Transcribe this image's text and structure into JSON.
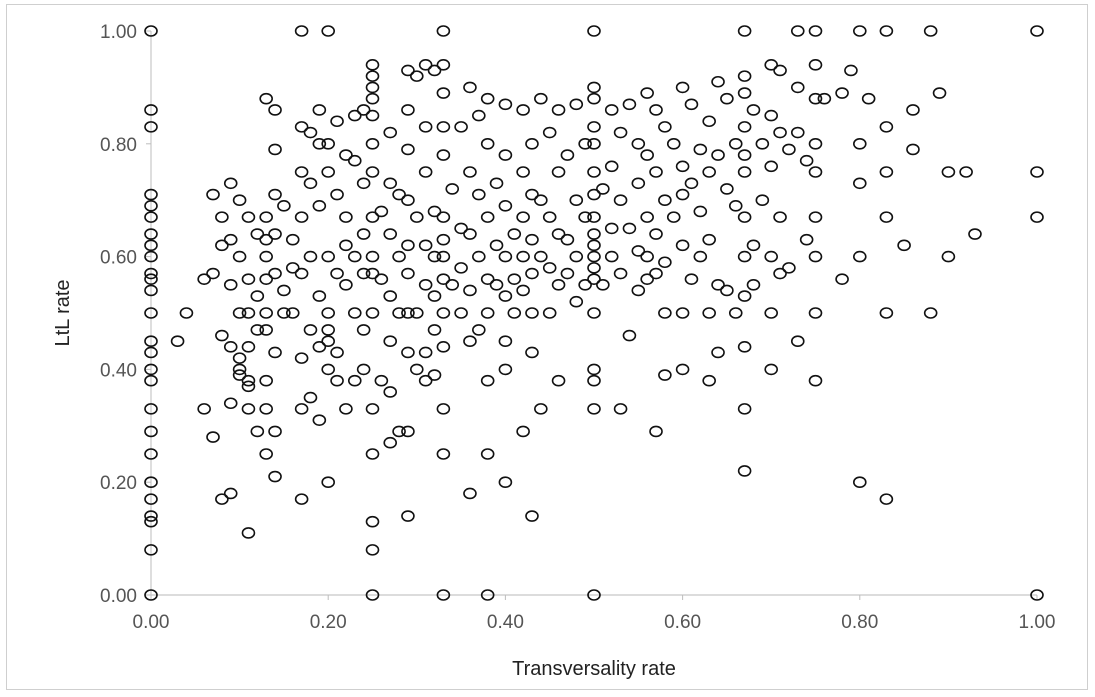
{
  "chart_data": {
    "type": "scatter",
    "title": "",
    "xlabel": "Transversality rate",
    "ylabel": "LtL rate",
    "xlim": [
      0,
      1
    ],
    "ylim": [
      0,
      1
    ],
    "grid": false,
    "marker": "open-circle",
    "marker_color": "#111111",
    "x_ticks": [
      "0.00",
      "0.20",
      "0.40",
      "0.60",
      "0.80",
      "1.00"
    ],
    "y_ticks": [
      "0.00",
      "0.20",
      "0.40",
      "0.60",
      "0.80",
      "1.00"
    ],
    "points": [
      [
        0,
        1
      ],
      [
        0,
        0.86
      ],
      [
        0,
        0.83
      ],
      [
        0,
        0.71
      ],
      [
        0,
        0.69
      ],
      [
        0,
        0.67
      ],
      [
        0,
        0.64
      ],
      [
        0,
        0.62
      ],
      [
        0,
        0.6
      ],
      [
        0,
        0.57
      ],
      [
        0,
        0.56
      ],
      [
        0,
        0.54
      ],
      [
        0,
        0.5
      ],
      [
        0,
        0.45
      ],
      [
        0,
        0.43
      ],
      [
        0,
        0.4
      ],
      [
        0,
        0.38
      ],
      [
        0,
        0.33
      ],
      [
        0,
        0.29
      ],
      [
        0,
        0.25
      ],
      [
        0,
        0.2
      ],
      [
        0,
        0.17
      ],
      [
        0,
        0.14
      ],
      [
        0,
        0.13
      ],
      [
        0,
        0.08
      ],
      [
        0,
        0
      ],
      [
        0.04,
        0.5
      ],
      [
        0.03,
        0.45
      ],
      [
        0.06,
        0.33
      ],
      [
        0.07,
        0.28
      ],
      [
        0.06,
        0.56
      ],
      [
        0.07,
        0.57
      ],
      [
        0.07,
        0.71
      ],
      [
        0.08,
        0.67
      ],
      [
        0.08,
        0.62
      ],
      [
        0.08,
        0.46
      ],
      [
        0.08,
        0.17
      ],
      [
        0.09,
        0.73
      ],
      [
        0.09,
        0.63
      ],
      [
        0.09,
        0.55
      ],
      [
        0.09,
        0.44
      ],
      [
        0.09,
        0.34
      ],
      [
        0.09,
        0.18
      ],
      [
        0.1,
        0.7
      ],
      [
        0.1,
        0.6
      ],
      [
        0.1,
        0.5
      ],
      [
        0.1,
        0.42
      ],
      [
        0.1,
        0.39
      ],
      [
        0.1,
        0.4
      ],
      [
        0.11,
        0.38
      ],
      [
        0.11,
        0.37
      ],
      [
        0.11,
        0.33
      ],
      [
        0.11,
        0.11
      ],
      [
        0.11,
        0.67
      ],
      [
        0.11,
        0.56
      ],
      [
        0.11,
        0.5
      ],
      [
        0.11,
        0.44
      ],
      [
        0.12,
        0.64
      ],
      [
        0.12,
        0.53
      ],
      [
        0.12,
        0.47
      ],
      [
        0.12,
        0.29
      ],
      [
        0.13,
        0.88
      ],
      [
        0.13,
        0.67
      ],
      [
        0.13,
        0.63
      ],
      [
        0.13,
        0.6
      ],
      [
        0.13,
        0.56
      ],
      [
        0.13,
        0.5
      ],
      [
        0.13,
        0.47
      ],
      [
        0.13,
        0.38
      ],
      [
        0.13,
        0.33
      ],
      [
        0.13,
        0.25
      ],
      [
        0.14,
        0.86
      ],
      [
        0.14,
        0.79
      ],
      [
        0.14,
        0.71
      ],
      [
        0.14,
        0.64
      ],
      [
        0.14,
        0.57
      ],
      [
        0.14,
        0.43
      ],
      [
        0.14,
        0.29
      ],
      [
        0.14,
        0.21
      ],
      [
        0.15,
        0.69
      ],
      [
        0.15,
        0.54
      ],
      [
        0.15,
        0.5
      ],
      [
        0.16,
        0.63
      ],
      [
        0.16,
        0.58
      ],
      [
        0.16,
        0.5
      ],
      [
        0.17,
        0.83
      ],
      [
        0.17,
        0.75
      ],
      [
        0.17,
        0.67
      ],
      [
        0.17,
        0.57
      ],
      [
        0.17,
        0.42
      ],
      [
        0.17,
        0.33
      ],
      [
        0.17,
        0.17
      ],
      [
        0.17,
        1
      ],
      [
        0.18,
        0.82
      ],
      [
        0.18,
        0.73
      ],
      [
        0.18,
        0.6
      ],
      [
        0.18,
        0.47
      ],
      [
        0.18,
        0.35
      ],
      [
        0.19,
        0.86
      ],
      [
        0.19,
        0.8
      ],
      [
        0.19,
        0.69
      ],
      [
        0.19,
        0.53
      ],
      [
        0.19,
        0.44
      ],
      [
        0.19,
        0.31
      ],
      [
        0.2,
        1
      ],
      [
        0.2,
        0.8
      ],
      [
        0.2,
        0.75
      ],
      [
        0.2,
        0.6
      ],
      [
        0.2,
        0.5
      ],
      [
        0.2,
        0.47
      ],
      [
        0.2,
        0.45
      ],
      [
        0.2,
        0.4
      ],
      [
        0.2,
        0.2
      ],
      [
        0.21,
        0.71
      ],
      [
        0.21,
        0.57
      ],
      [
        0.21,
        0.43
      ],
      [
        0.21,
        0.38
      ],
      [
        0.21,
        0.84
      ],
      [
        0.22,
        0.78
      ],
      [
        0.22,
        0.67
      ],
      [
        0.22,
        0.62
      ],
      [
        0.22,
        0.55
      ],
      [
        0.22,
        0.33
      ],
      [
        0.23,
        0.85
      ],
      [
        0.23,
        0.77
      ],
      [
        0.23,
        0.6
      ],
      [
        0.23,
        0.5
      ],
      [
        0.23,
        0.38
      ],
      [
        0.24,
        0.86
      ],
      [
        0.24,
        0.73
      ],
      [
        0.24,
        0.64
      ],
      [
        0.24,
        0.57
      ],
      [
        0.24,
        0.47
      ],
      [
        0.24,
        0.4
      ],
      [
        0.25,
        0.94
      ],
      [
        0.25,
        0.92
      ],
      [
        0.25,
        0.9
      ],
      [
        0.25,
        0.88
      ],
      [
        0.25,
        0.85
      ],
      [
        0.25,
        0.8
      ],
      [
        0.25,
        0.75
      ],
      [
        0.25,
        0.67
      ],
      [
        0.25,
        0.6
      ],
      [
        0.25,
        0.57
      ],
      [
        0.25,
        0.5
      ],
      [
        0.25,
        0.33
      ],
      [
        0.25,
        0.25
      ],
      [
        0.25,
        0.13
      ],
      [
        0.25,
        0.08
      ],
      [
        0.25,
        0
      ],
      [
        0.26,
        0.68
      ],
      [
        0.26,
        0.56
      ],
      [
        0.26,
        0.38
      ],
      [
        0.27,
        0.82
      ],
      [
        0.27,
        0.73
      ],
      [
        0.27,
        0.64
      ],
      [
        0.27,
        0.53
      ],
      [
        0.27,
        0.45
      ],
      [
        0.27,
        0.36
      ],
      [
        0.27,
        0.27
      ],
      [
        0.28,
        0.71
      ],
      [
        0.28,
        0.6
      ],
      [
        0.28,
        0.5
      ],
      [
        0.28,
        0.29
      ],
      [
        0.29,
        0.93
      ],
      [
        0.29,
        0.86
      ],
      [
        0.29,
        0.79
      ],
      [
        0.29,
        0.7
      ],
      [
        0.29,
        0.62
      ],
      [
        0.29,
        0.57
      ],
      [
        0.29,
        0.5
      ],
      [
        0.29,
        0.43
      ],
      [
        0.29,
        0.29
      ],
      [
        0.29,
        0.14
      ],
      [
        0.3,
        0.92
      ],
      [
        0.3,
        0.67
      ],
      [
        0.3,
        0.5
      ],
      [
        0.3,
        0.4
      ],
      [
        0.31,
        0.94
      ],
      [
        0.31,
        0.83
      ],
      [
        0.31,
        0.75
      ],
      [
        0.31,
        0.62
      ],
      [
        0.31,
        0.55
      ],
      [
        0.31,
        0.43
      ],
      [
        0.31,
        0.38
      ],
      [
        0.32,
        0.93
      ],
      [
        0.32,
        0.68
      ],
      [
        0.32,
        0.6
      ],
      [
        0.32,
        0.53
      ],
      [
        0.32,
        0.47
      ],
      [
        0.32,
        0.39
      ],
      [
        0.33,
        1
      ],
      [
        0.33,
        0.94
      ],
      [
        0.33,
        0.89
      ],
      [
        0.33,
        0.83
      ],
      [
        0.33,
        0.78
      ],
      [
        0.33,
        0.67
      ],
      [
        0.33,
        0.63
      ],
      [
        0.33,
        0.6
      ],
      [
        0.33,
        0.56
      ],
      [
        0.33,
        0.5
      ],
      [
        0.33,
        0.44
      ],
      [
        0.33,
        0.33
      ],
      [
        0.33,
        0.25
      ],
      [
        0.33,
        0
      ],
      [
        0.34,
        0.72
      ],
      [
        0.34,
        0.55
      ],
      [
        0.35,
        0.83
      ],
      [
        0.35,
        0.65
      ],
      [
        0.35,
        0.58
      ],
      [
        0.35,
        0.5
      ],
      [
        0.36,
        0.9
      ],
      [
        0.36,
        0.75
      ],
      [
        0.36,
        0.64
      ],
      [
        0.36,
        0.54
      ],
      [
        0.36,
        0.45
      ],
      [
        0.36,
        0.18
      ],
      [
        0.37,
        0.85
      ],
      [
        0.37,
        0.71
      ],
      [
        0.37,
        0.6
      ],
      [
        0.37,
        0.47
      ],
      [
        0.38,
        0.88
      ],
      [
        0.38,
        0.8
      ],
      [
        0.38,
        0.67
      ],
      [
        0.38,
        0.56
      ],
      [
        0.38,
        0.5
      ],
      [
        0.38,
        0.38
      ],
      [
        0.38,
        0.25
      ],
      [
        0.38,
        0
      ],
      [
        0.39,
        0.73
      ],
      [
        0.39,
        0.62
      ],
      [
        0.39,
        0.55
      ],
      [
        0.4,
        0.87
      ],
      [
        0.4,
        0.78
      ],
      [
        0.4,
        0.69
      ],
      [
        0.4,
        0.6
      ],
      [
        0.4,
        0.53
      ],
      [
        0.4,
        0.45
      ],
      [
        0.4,
        0.4
      ],
      [
        0.4,
        0.2
      ],
      [
        0.41,
        0.64
      ],
      [
        0.41,
        0.56
      ],
      [
        0.41,
        0.5
      ],
      [
        0.42,
        0.86
      ],
      [
        0.42,
        0.75
      ],
      [
        0.42,
        0.67
      ],
      [
        0.42,
        0.6
      ],
      [
        0.42,
        0.54
      ],
      [
        0.42,
        0.29
      ],
      [
        0.43,
        0.8
      ],
      [
        0.43,
        0.71
      ],
      [
        0.43,
        0.63
      ],
      [
        0.43,
        0.57
      ],
      [
        0.43,
        0.5
      ],
      [
        0.43,
        0.43
      ],
      [
        0.43,
        0.14
      ],
      [
        0.44,
        0.88
      ],
      [
        0.44,
        0.7
      ],
      [
        0.44,
        0.6
      ],
      [
        0.44,
        0.33
      ],
      [
        0.45,
        0.82
      ],
      [
        0.45,
        0.67
      ],
      [
        0.45,
        0.58
      ],
      [
        0.45,
        0.5
      ],
      [
        0.46,
        0.86
      ],
      [
        0.46,
        0.75
      ],
      [
        0.46,
        0.64
      ],
      [
        0.46,
        0.55
      ],
      [
        0.46,
        0.38
      ],
      [
        0.47,
        0.78
      ],
      [
        0.47,
        0.63
      ],
      [
        0.47,
        0.57
      ],
      [
        0.48,
        0.87
      ],
      [
        0.48,
        0.7
      ],
      [
        0.48,
        0.6
      ],
      [
        0.48,
        0.52
      ],
      [
        0.49,
        0.8
      ],
      [
        0.49,
        0.67
      ],
      [
        0.49,
        0.55
      ],
      [
        0.5,
        1
      ],
      [
        0.5,
        0.9
      ],
      [
        0.5,
        0.88
      ],
      [
        0.5,
        0.83
      ],
      [
        0.5,
        0.8
      ],
      [
        0.5,
        0.75
      ],
      [
        0.5,
        0.71
      ],
      [
        0.5,
        0.67
      ],
      [
        0.5,
        0.64
      ],
      [
        0.5,
        0.62
      ],
      [
        0.5,
        0.6
      ],
      [
        0.5,
        0.58
      ],
      [
        0.5,
        0.56
      ],
      [
        0.5,
        0.5
      ],
      [
        0.5,
        0.4
      ],
      [
        0.5,
        0.38
      ],
      [
        0.5,
        0.33
      ],
      [
        0.5,
        0
      ],
      [
        0.51,
        0.72
      ],
      [
        0.51,
        0.55
      ],
      [
        0.52,
        0.86
      ],
      [
        0.52,
        0.76
      ],
      [
        0.52,
        0.65
      ],
      [
        0.52,
        0.6
      ],
      [
        0.53,
        0.82
      ],
      [
        0.53,
        0.7
      ],
      [
        0.53,
        0.57
      ],
      [
        0.53,
        0.33
      ],
      [
        0.54,
        0.87
      ],
      [
        0.54,
        0.65
      ],
      [
        0.54,
        0.46
      ],
      [
        0.55,
        0.8
      ],
      [
        0.55,
        0.73
      ],
      [
        0.55,
        0.61
      ],
      [
        0.55,
        0.54
      ],
      [
        0.56,
        0.89
      ],
      [
        0.56,
        0.78
      ],
      [
        0.56,
        0.67
      ],
      [
        0.56,
        0.6
      ],
      [
        0.56,
        0.56
      ],
      [
        0.57,
        0.86
      ],
      [
        0.57,
        0.75
      ],
      [
        0.57,
        0.64
      ],
      [
        0.57,
        0.57
      ],
      [
        0.57,
        0.29
      ],
      [
        0.58,
        0.83
      ],
      [
        0.58,
        0.7
      ],
      [
        0.58,
        0.59
      ],
      [
        0.58,
        0.5
      ],
      [
        0.58,
        0.39
      ],
      [
        0.59,
        0.8
      ],
      [
        0.59,
        0.67
      ],
      [
        0.6,
        0.9
      ],
      [
        0.6,
        0.76
      ],
      [
        0.6,
        0.71
      ],
      [
        0.6,
        0.62
      ],
      [
        0.6,
        0.5
      ],
      [
        0.6,
        0.4
      ],
      [
        0.61,
        0.87
      ],
      [
        0.61,
        0.73
      ],
      [
        0.61,
        0.56
      ],
      [
        0.62,
        0.79
      ],
      [
        0.62,
        0.68
      ],
      [
        0.62,
        0.6
      ],
      [
        0.63,
        0.84
      ],
      [
        0.63,
        0.75
      ],
      [
        0.63,
        0.63
      ],
      [
        0.63,
        0.5
      ],
      [
        0.63,
        0.38
      ],
      [
        0.64,
        0.91
      ],
      [
        0.64,
        0.78
      ],
      [
        0.64,
        0.55
      ],
      [
        0.64,
        0.43
      ],
      [
        0.65,
        0.88
      ],
      [
        0.65,
        0.72
      ],
      [
        0.65,
        0.54
      ],
      [
        0.66,
        0.8
      ],
      [
        0.66,
        0.69
      ],
      [
        0.66,
        0.5
      ],
      [
        0.67,
        1
      ],
      [
        0.67,
        0.92
      ],
      [
        0.67,
        0.89
      ],
      [
        0.67,
        0.83
      ],
      [
        0.67,
        0.78
      ],
      [
        0.67,
        0.75
      ],
      [
        0.67,
        0.67
      ],
      [
        0.67,
        0.6
      ],
      [
        0.67,
        0.53
      ],
      [
        0.67,
        0.44
      ],
      [
        0.67,
        0.33
      ],
      [
        0.67,
        0.22
      ],
      [
        0.68,
        0.86
      ],
      [
        0.68,
        0.62
      ],
      [
        0.68,
        0.55
      ],
      [
        0.69,
        0.8
      ],
      [
        0.69,
        0.7
      ],
      [
        0.7,
        0.94
      ],
      [
        0.7,
        0.85
      ],
      [
        0.7,
        0.76
      ],
      [
        0.7,
        0.6
      ],
      [
        0.7,
        0.5
      ],
      [
        0.7,
        0.4
      ],
      [
        0.71,
        0.93
      ],
      [
        0.71,
        0.82
      ],
      [
        0.71,
        0.67
      ],
      [
        0.71,
        0.57
      ],
      [
        0.72,
        0.79
      ],
      [
        0.72,
        0.58
      ],
      [
        0.73,
        1
      ],
      [
        0.73,
        0.9
      ],
      [
        0.73,
        0.82
      ],
      [
        0.73,
        0.45
      ],
      [
        0.74,
        0.77
      ],
      [
        0.74,
        0.63
      ],
      [
        0.75,
        1
      ],
      [
        0.75,
        0.94
      ],
      [
        0.75,
        0.88
      ],
      [
        0.75,
        0.8
      ],
      [
        0.75,
        0.75
      ],
      [
        0.75,
        0.67
      ],
      [
        0.75,
        0.6
      ],
      [
        0.75,
        0.5
      ],
      [
        0.75,
        0.38
      ],
      [
        0.76,
        0.88
      ],
      [
        0.78,
        0.89
      ],
      [
        0.78,
        0.56
      ],
      [
        0.79,
        0.93
      ],
      [
        0.8,
        1
      ],
      [
        0.8,
        0.8
      ],
      [
        0.8,
        0.73
      ],
      [
        0.8,
        0.6
      ],
      [
        0.8,
        0.2
      ],
      [
        0.81,
        0.88
      ],
      [
        0.83,
        1
      ],
      [
        0.83,
        0.83
      ],
      [
        0.83,
        0.75
      ],
      [
        0.83,
        0.67
      ],
      [
        0.83,
        0.5
      ],
      [
        0.83,
        0.17
      ],
      [
        0.85,
        0.62
      ],
      [
        0.86,
        0.86
      ],
      [
        0.86,
        0.79
      ],
      [
        0.88,
        1
      ],
      [
        0.88,
        0.5
      ],
      [
        0.89,
        0.89
      ],
      [
        0.9,
        0.75
      ],
      [
        0.9,
        0.6
      ],
      [
        0.92,
        0.75
      ],
      [
        0.93,
        0.64
      ],
      [
        1,
        1
      ],
      [
        1,
        0.75
      ],
      [
        1,
        0.67
      ],
      [
        1,
        0
      ]
    ]
  }
}
